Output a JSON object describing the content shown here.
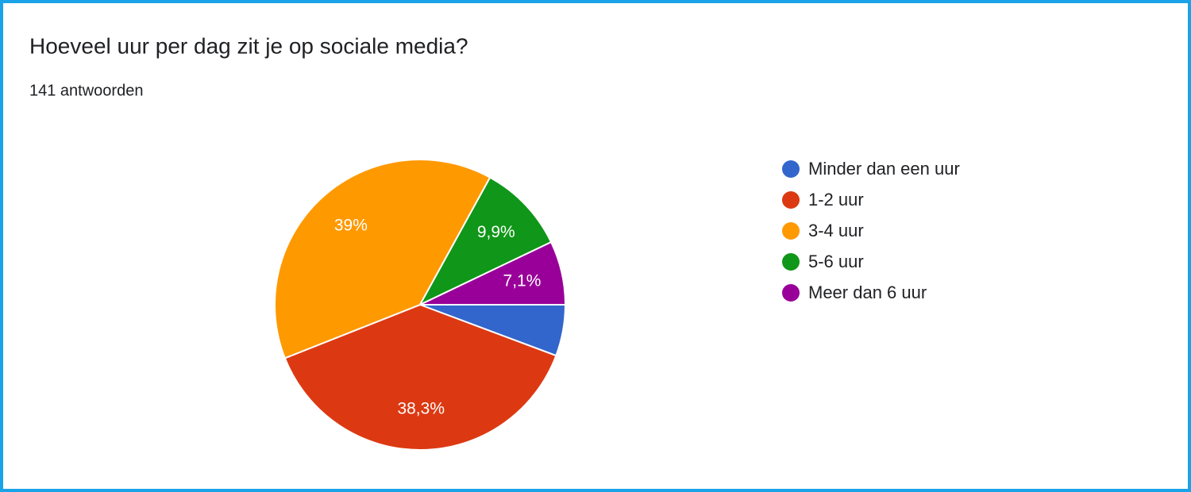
{
  "chart_data": {
    "type": "pie",
    "title": "Hoeveel uur per dag zit je op sociale media?",
    "subtitle": "141 antwoorden",
    "categories": [
      "Minder dan een uur",
      "1-2 uur",
      "3-4 uur",
      "5-6 uur",
      "Meer dan 6 uur"
    ],
    "values": [
      5.7,
      38.3,
      39,
      9.9,
      7.1
    ],
    "value_labels": [
      null,
      "38,3%",
      "39%",
      "9,9%",
      "7,1%"
    ],
    "colors": [
      "#3366cc",
      "#dc3912",
      "#ff9900",
      "#109618",
      "#990099"
    ],
    "legend": "right"
  }
}
